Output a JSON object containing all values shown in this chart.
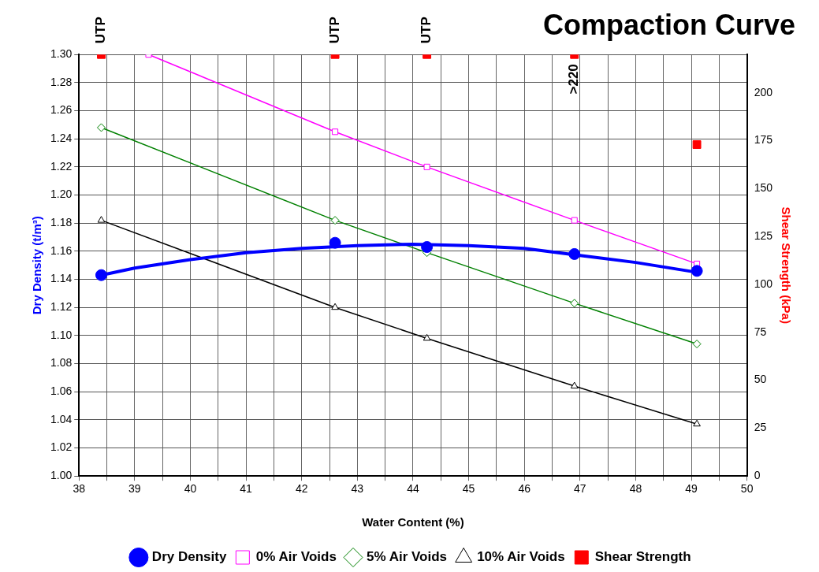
{
  "chart_data": {
    "type": "line",
    "title": "Compaction Curve",
    "xlabel": "Water Content (%)",
    "ylabel": "Dry Density (t/m³)",
    "y2label": "Shear Strength (kPa)",
    "xlim": [
      38,
      50
    ],
    "xticks": [
      38,
      {
        "value": 38.5,
        "label": null
      },
      39,
      {
        "value": 39.5,
        "label": null
      },
      40,
      {
        "value": 40.5,
        "label": null
      },
      41,
      {
        "value": 41.5,
        "label": null
      },
      42,
      {
        "value": 42.5,
        "label": null
      },
      43,
      {
        "value": 43.5,
        "label": null
      },
      44,
      {
        "value": 44.5,
        "label": null
      },
      45,
      {
        "value": 45.5,
        "label": null
      },
      46,
      {
        "value": 46.5,
        "label": null
      },
      47,
      {
        "value": 47.5,
        "label": null
      },
      48,
      {
        "value": 48.5,
        "label": null
      },
      49,
      {
        "value": 49.5,
        "label": null
      },
      50
    ],
    "ylim": [
      1.0,
      1.3
    ],
    "yticks": [
      {
        "value": 1.0,
        "label": "1.00"
      },
      {
        "value": 1.02,
        "label": "1.02"
      },
      {
        "value": 1.04,
        "label": "1.04"
      },
      {
        "value": 1.06,
        "label": "1.06"
      },
      {
        "value": 1.08,
        "label": "1.08"
      },
      {
        "value": 1.1,
        "label": "1.10"
      },
      {
        "value": 1.12,
        "label": "1.12"
      },
      {
        "value": 1.14,
        "label": "1.14"
      },
      {
        "value": 1.16,
        "label": "1.16"
      },
      {
        "value": 1.18,
        "label": "1.18"
      },
      {
        "value": 1.2,
        "label": "1.20"
      },
      {
        "value": 1.22,
        "label": "1.22"
      },
      {
        "value": 1.24,
        "label": "1.24"
      },
      {
        "value": 1.26,
        "label": "1.26"
      },
      {
        "value": 1.28,
        "label": "1.28"
      },
      {
        "value": 1.3,
        "label": "1.30"
      }
    ],
    "y2lim": [
      0,
      220
    ],
    "y2ticks": [
      0,
      25,
      50,
      75,
      100,
      125,
      150,
      175,
      200
    ],
    "grid": true,
    "legend": "bottom",
    "series": [
      {
        "name": "Dry Density",
        "type": "scatter",
        "marker": "circle",
        "color": "#0000ff",
        "x": [
          38.4,
          42.6,
          44.25,
          46.9,
          49.1
        ],
        "values": [
          1.143,
          1.166,
          1.163,
          1.158,
          1.146
        ]
      },
      {
        "type": "line",
        "marker": "none",
        "color": "#0000ff",
        "x": [
          38.4,
          39,
          40,
          41,
          42,
          43,
          44,
          45,
          46,
          47,
          48,
          49.1
        ],
        "values": [
          1.143,
          1.148,
          1.154,
          1.159,
          1.162,
          1.164,
          1.165,
          1.164,
          1.162,
          1.157,
          1.152,
          1.145
        ]
      },
      {
        "name": "0% Air Voids",
        "type": "line",
        "marker": "square",
        "color": "#ff00ff",
        "x": [
          39.25,
          42.6,
          44.25,
          46.9,
          49.1
        ],
        "values": [
          1.3,
          1.245,
          1.22,
          1.182,
          1.151
        ]
      },
      {
        "name": "5% Air Voids",
        "type": "line",
        "marker": "diamond",
        "color": "#008000",
        "x": [
          38.4,
          42.6,
          44.25,
          46.9,
          49.1
        ],
        "values": [
          1.248,
          1.182,
          1.159,
          1.123,
          1.094
        ]
      },
      {
        "name": "10% Air Voids",
        "type": "line",
        "marker": "triangle",
        "color": "#000000",
        "x": [
          38.4,
          42.6,
          44.25,
          46.9,
          49.1
        ],
        "values": [
          1.182,
          1.12,
          1.098,
          1.064,
          1.037
        ]
      },
      {
        "name": "Shear Strength",
        "type": "scatter",
        "marker": "square",
        "axis": "y2",
        "color": "#ff0000",
        "x": [
          38.4,
          42.6,
          44.25,
          46.9,
          49.1
        ],
        "values": [
          220,
          220,
          220,
          220,
          173
        ]
      }
    ],
    "annotations": [
      "UTP",
      "UTP",
      "UTP",
      ">220"
    ]
  }
}
